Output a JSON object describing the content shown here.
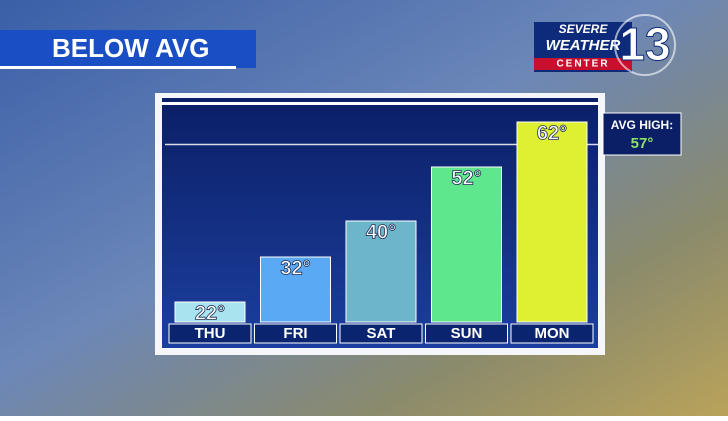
{
  "chart_data": {
    "type": "bar",
    "title": "BELOW AVG",
    "logo": {
      "line1": "SEVERE",
      "line2": "WEATHER",
      "line3": "CENTER",
      "number": "13"
    },
    "categories": [
      "THU",
      "FRI",
      "SAT",
      "SUN",
      "MON"
    ],
    "values": [
      22,
      32,
      40,
      52,
      62
    ],
    "value_labels": [
      "22°",
      "32°",
      "40°",
      "52°",
      "62°"
    ],
    "colors": [
      "#a9e3ef",
      "#5aa9f4",
      "#6db5c9",
      "#5ee78c",
      "#def031"
    ],
    "average": {
      "label": "AVG HIGH:",
      "value": 57,
      "value_label": "57°"
    }
  }
}
